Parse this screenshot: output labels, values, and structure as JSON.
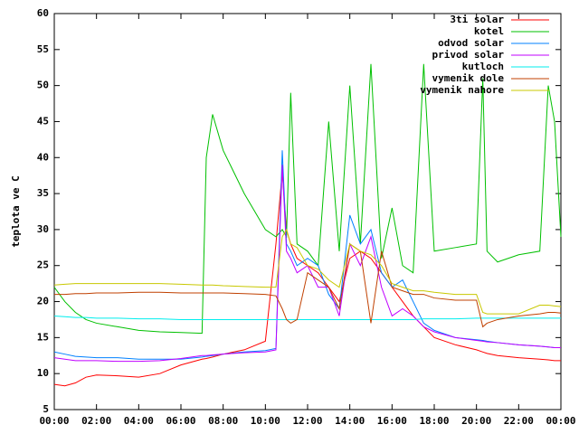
{
  "chart_data": {
    "type": "line",
    "ylabel": "teplota ve C",
    "legend_position": "top-right",
    "x": [
      0,
      0.5,
      1,
      1.5,
      2,
      3,
      4,
      5,
      6,
      7,
      7.2,
      7.5,
      8,
      9,
      10,
      10.5,
      10.8,
      11,
      11.2,
      11.5,
      12,
      12.5,
      13,
      13.5,
      14,
      14.5,
      15,
      15.5,
      16,
      16.5,
      17,
      17.5,
      18,
      19,
      20,
      20.3,
      20.5,
      21,
      22,
      23,
      23.4,
      23.7,
      24
    ],
    "xlim": [
      0,
      24
    ],
    "xticks": [
      {
        "value": 0,
        "label": "00:00"
      },
      {
        "value": 2,
        "label": "02:00"
      },
      {
        "value": 4,
        "label": "04:00"
      },
      {
        "value": 6,
        "label": "06:00"
      },
      {
        "value": 8,
        "label": "08:00"
      },
      {
        "value": 10,
        "label": "10:00"
      },
      {
        "value": 12,
        "label": "12:00"
      },
      {
        "value": 14,
        "label": "14:00"
      },
      {
        "value": 16,
        "label": "16:00"
      },
      {
        "value": 18,
        "label": "18:00"
      },
      {
        "value": 20,
        "label": "20:00"
      },
      {
        "value": 22,
        "label": "22:00"
      },
      {
        "value": 24,
        "label": "00:00"
      }
    ],
    "ylim": [
      5,
      60
    ],
    "yticks": [
      5,
      10,
      15,
      20,
      25,
      30,
      35,
      40,
      45,
      50,
      55,
      60
    ],
    "series": [
      {
        "name": "3ti solar",
        "color": "#ff0000",
        "values": [
          8.5,
          8.3,
          8.7,
          9.5,
          9.8,
          9.7,
          9.5,
          10,
          11.2,
          12,
          12.1,
          12.3,
          12.7,
          13.3,
          14.5,
          28,
          38,
          30,
          28,
          26,
          25,
          24,
          22,
          20,
          26,
          27,
          26,
          24,
          22,
          20,
          18,
          16.5,
          15,
          14,
          13.3,
          13,
          12.8,
          12.5,
          12.2,
          12,
          11.9,
          11.8,
          11.8
        ]
      },
      {
        "name": "kotel",
        "color": "#00c000",
        "values": [
          22,
          20,
          18.5,
          17.5,
          17,
          16.5,
          16,
          15.8,
          15.7,
          15.6,
          40,
          46,
          41,
          35,
          30,
          29,
          30,
          29,
          49,
          28,
          27,
          25,
          45,
          27,
          50,
          28,
          53,
          26,
          33,
          25,
          24,
          53,
          27,
          27.5,
          28,
          51,
          27,
          25.5,
          26.5,
          27,
          50,
          45,
          29
        ]
      },
      {
        "name": "odvod solar",
        "color": "#0080ff",
        "values": [
          13,
          12.7,
          12.4,
          12.3,
          12.2,
          12.2,
          12,
          12,
          12,
          12.3,
          12.4,
          12.5,
          12.7,
          13,
          13.2,
          13.5,
          41,
          28,
          27,
          25,
          26,
          25,
          21,
          19,
          32,
          28,
          30,
          24,
          22,
          23,
          20,
          17,
          16,
          15,
          14.7,
          14.6,
          14.5,
          14.3,
          14,
          13.8,
          13.7,
          13.6,
          13.6
        ]
      },
      {
        "name": "privod solar",
        "color": "#c000ff",
        "values": [
          12.2,
          12,
          11.8,
          11.8,
          11.8,
          11.7,
          11.7,
          11.8,
          12.1,
          12.5,
          12.5,
          12.6,
          12.7,
          12.9,
          13,
          13.3,
          39,
          27,
          26,
          24,
          25,
          22,
          22,
          18,
          28,
          25,
          29,
          22,
          18,
          19,
          18,
          16.5,
          15.8,
          15,
          14.6,
          14.5,
          14.4,
          14.3,
          14,
          13.8,
          13.7,
          13.6,
          13.6
        ]
      },
      {
        "name": "kutloch",
        "color": "#00eeee",
        "values": [
          18,
          17.9,
          17.8,
          17.8,
          17.7,
          17.7,
          17.6,
          17.6,
          17.5,
          17.5,
          17.5,
          17.5,
          17.5,
          17.5,
          17.5,
          17.5,
          17.5,
          17.5,
          17.5,
          17.5,
          17.5,
          17.5,
          17.5,
          17.5,
          17.5,
          17.5,
          17.5,
          17.5,
          17.5,
          17.5,
          17.5,
          17.6,
          17.6,
          17.6,
          17.7,
          17.7,
          17.7,
          17.7,
          17.7,
          17.7,
          17.7,
          17.7,
          17.7
        ]
      },
      {
        "name": "vymenik dole",
        "color": "#c04000",
        "values": [
          21,
          21,
          21.1,
          21.1,
          21.2,
          21.2,
          21.3,
          21.3,
          21.2,
          21.2,
          21.2,
          21.2,
          21.2,
          21.1,
          21,
          20.8,
          19,
          17.5,
          17,
          17.5,
          24,
          23,
          22,
          19,
          28,
          27,
          17,
          27,
          22,
          21.5,
          21,
          21,
          20.5,
          20.2,
          20.2,
          16.5,
          17,
          17.5,
          18,
          18.3,
          18.5,
          18.5,
          18.4
        ]
      },
      {
        "name": "vymenik nahore",
        "color": "#c8c800",
        "values": [
          22.3,
          22.4,
          22.5,
          22.5,
          22.5,
          22.5,
          22.5,
          22.5,
          22.4,
          22.3,
          22.3,
          22.3,
          22.2,
          22.1,
          22,
          22,
          29,
          30,
          28,
          27.5,
          25,
          24.5,
          23,
          22,
          28,
          27,
          26.5,
          25,
          22.5,
          22,
          21.5,
          21.5,
          21.3,
          21,
          21,
          18.5,
          18.3,
          18.3,
          18.3,
          19.5,
          19.5,
          19.4,
          19.3
        ]
      }
    ]
  }
}
